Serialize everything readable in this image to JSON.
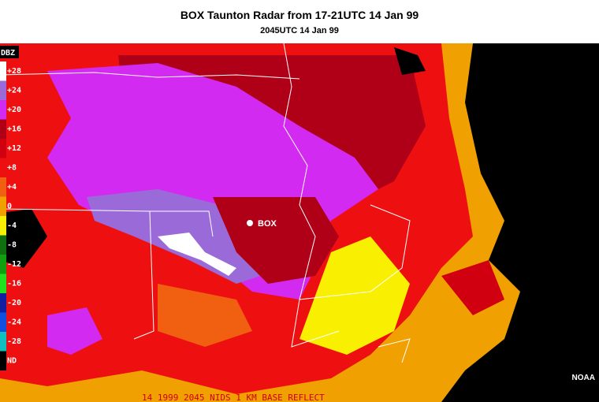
{
  "header": {
    "title": "BOX Taunton Radar from 17-21UTC 14 Jan 99",
    "subtitle": "2045UTC 14 Jan 99"
  },
  "legend": {
    "title": "DBZ",
    "entries": [
      {
        "label": "+28",
        "color": "#ffffff"
      },
      {
        "label": "+24",
        "color": "#9a6ad8"
      },
      {
        "label": "+20",
        "color": "#d22af0"
      },
      {
        "label": "+16",
        "color": "#b00018"
      },
      {
        "label": "+12",
        "color": "#d00010"
      },
      {
        "label": "+8",
        "color": "#ee1010"
      },
      {
        "label": "+4",
        "color": "#f06010"
      },
      {
        "label": "0",
        "color": "#f0a000"
      },
      {
        "label": "-4",
        "color": "#f8f000"
      },
      {
        "label": "-8",
        "color": "#107010"
      },
      {
        "label": "-12",
        "color": "#10a010"
      },
      {
        "label": "-16",
        "color": "#20e020"
      },
      {
        "label": "-20",
        "color": "#1020a0"
      },
      {
        "label": "-24",
        "color": "#1050e0"
      },
      {
        "label": "-28",
        "color": "#10c0c0"
      },
      {
        "label": "ND",
        "color": "#000000"
      }
    ]
  },
  "map": {
    "station": "BOX",
    "credit": "NOAA",
    "footer": "14 1999 2045 NIDS 1 KM BASE REFLECT"
  }
}
